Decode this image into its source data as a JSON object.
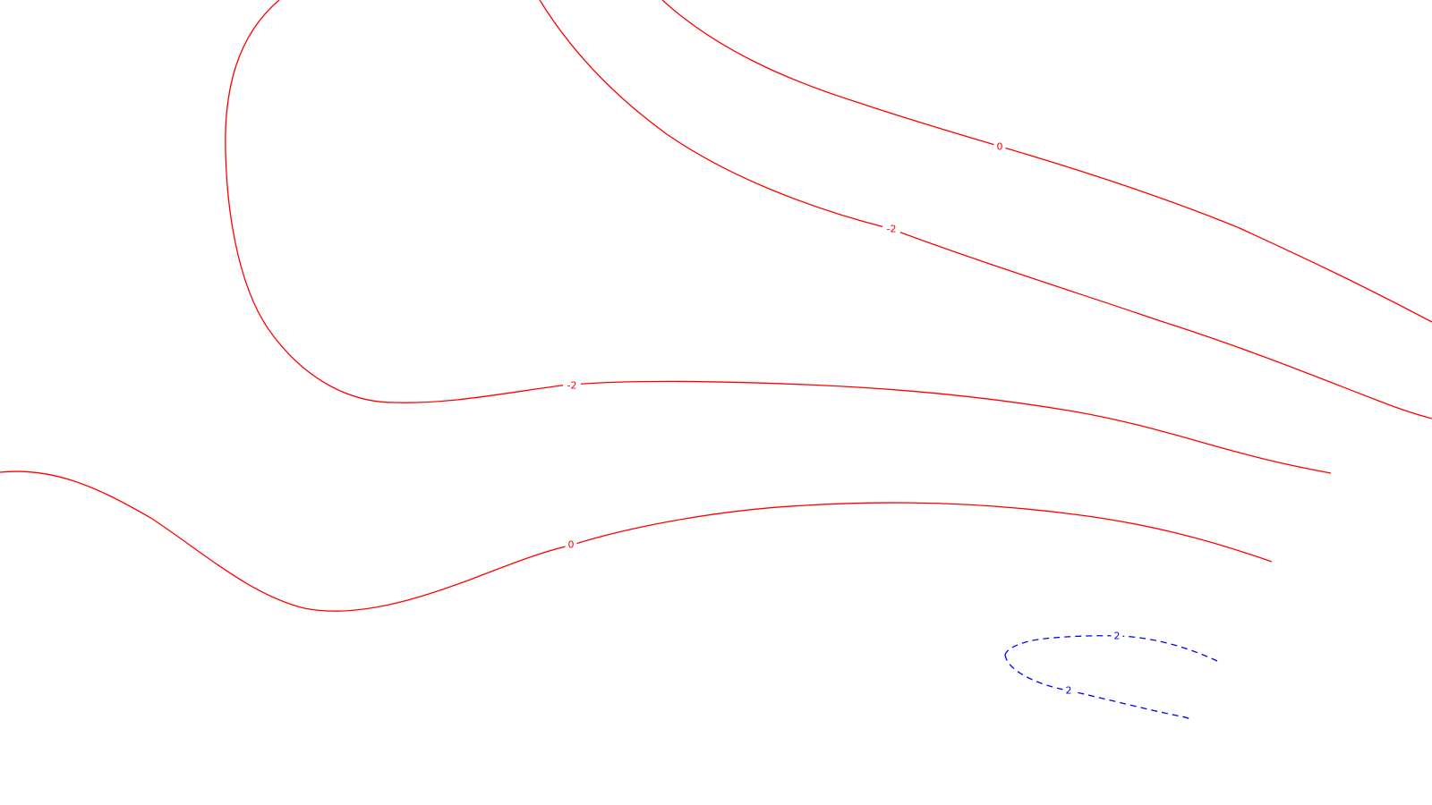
{
  "chart_data": {
    "type": "contour",
    "title": "",
    "xlabel": "",
    "ylabel": "",
    "grid": false,
    "legend": "none",
    "colors": {
      "negative_and_zero": "#ff0000",
      "positive": "#0000ff",
      "background": "#ffffff"
    },
    "line_styles": {
      "negative_and_zero": "solid",
      "positive": "dashed"
    },
    "contours": [
      {
        "level": 0,
        "label": "0",
        "style": "solid",
        "color": "#ff0000"
      },
      {
        "level": -2,
        "label": "-2",
        "style": "solid",
        "color": "#ff0000"
      },
      {
        "level": -2,
        "label": "-2",
        "style": "solid",
        "color": "#ff0000"
      },
      {
        "level": 0,
        "label": "0",
        "style": "solid",
        "color": "#ff0000"
      },
      {
        "level": 2,
        "label": "2",
        "style": "dashed",
        "color": "#0000ff"
      },
      {
        "level": 2,
        "label": "2",
        "style": "dashed",
        "color": "#0000ff"
      }
    ]
  }
}
